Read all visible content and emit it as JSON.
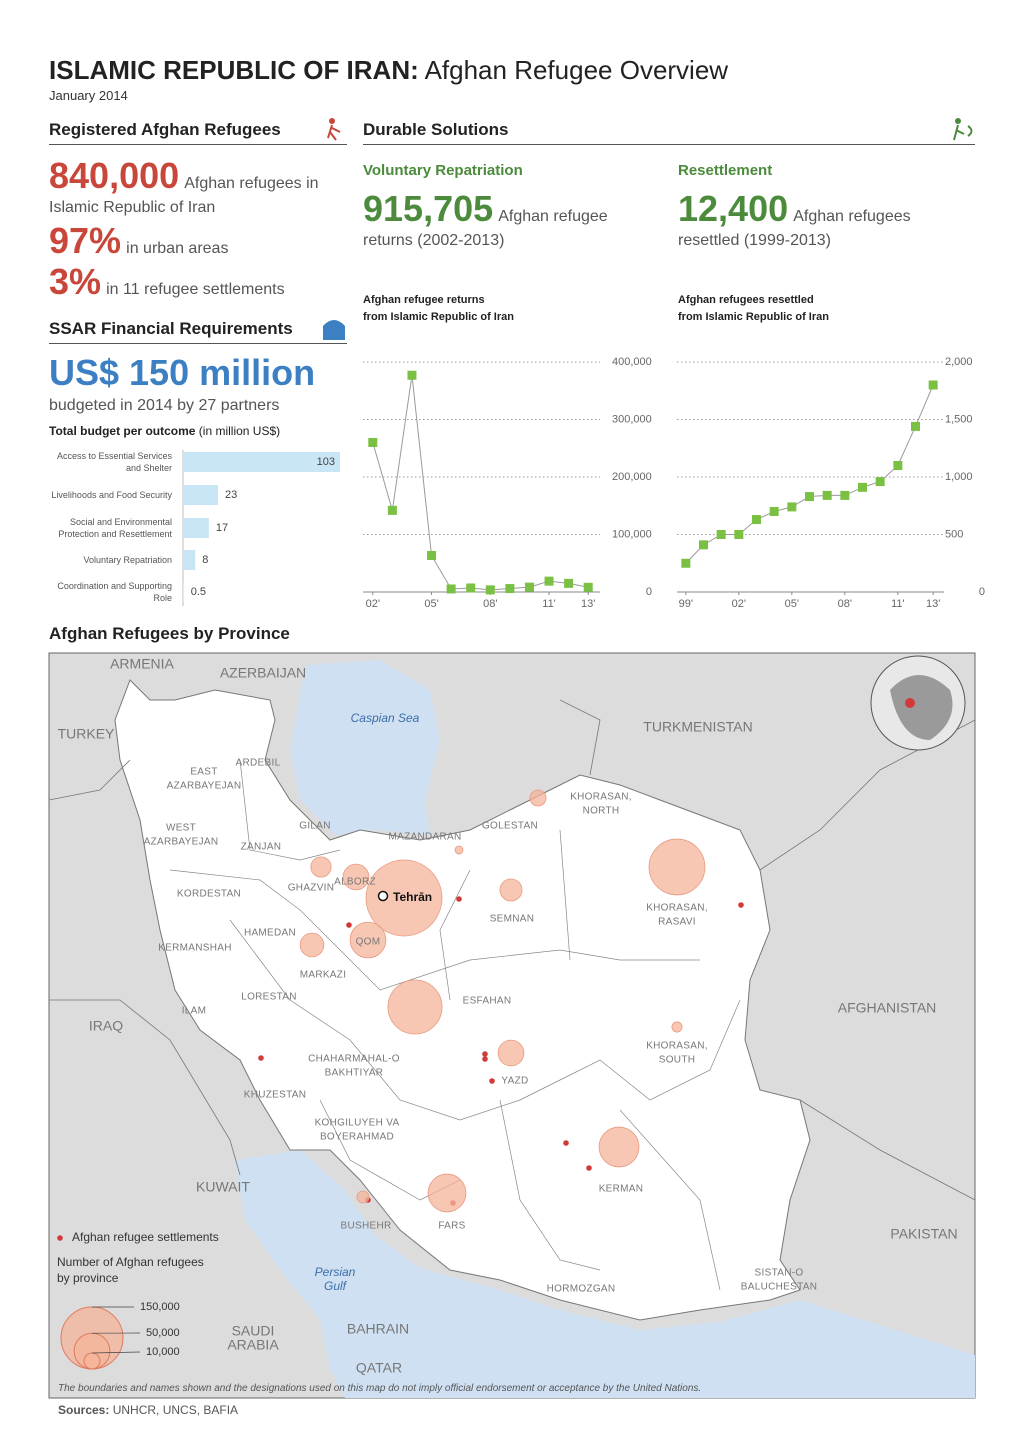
{
  "header": {
    "title_bold": "ISLAMIC REPUBLIC OF IRAN:",
    "title_rest": "Afghan Refugee Overview",
    "date": "January 2014"
  },
  "registered": {
    "heading": "Registered Afghan Refugees",
    "stats": [
      {
        "number": "840,000",
        "text": "Afghan refugees in Islamic Republic of Iran"
      },
      {
        "number": "97%",
        "text": "in urban areas"
      },
      {
        "number": "3%",
        "text": "in 11 refugee settlements"
      }
    ]
  },
  "ssar": {
    "heading": "SSAR Financial Requirements",
    "amount": "US$ 150 million",
    "text": "budgeted in 2014 by 27 partners",
    "budget_label": "Total budget per outcome",
    "budget_unit": "(in million US$)"
  },
  "durable": {
    "heading": "Durable Solutions",
    "repatriation": {
      "heading": "Voluntary Repatriation",
      "number": "915,705",
      "text": "Afghan refugee returns (2002-2013)"
    },
    "resettlement": {
      "heading": "Resettlement",
      "number": "12,400",
      "text": "Afghan refugees resettled (1999-2013)"
    }
  },
  "chart_data": [
    {
      "type": "hbar",
      "color": "#c9e6f7",
      "categories": [
        "Access to Essential Services and Shelter",
        "Livelihoods and Food Security",
        "Social and Environmental Protection and Resettlement",
        "Voluntary Repatriation",
        "Coordination and Supporting Role"
      ],
      "values": [
        103,
        23,
        17,
        8,
        0.5
      ]
    },
    {
      "type": "line",
      "title": "Afghan refugee returns",
      "subtitle": "from Islamic Republic of Iran",
      "color": "#7ac143",
      "line_color": "#9a9a9a",
      "grid": true,
      "x": [
        2002,
        2003,
        2004,
        2005,
        2006,
        2007,
        2008,
        2009,
        2010,
        2011,
        2012,
        2013
      ],
      "values": [
        260000,
        142000,
        377000,
        63500,
        5300,
        7000,
        3700,
        6000,
        8500,
        18900,
        15000,
        8200
      ],
      "xlim": [
        2001.5,
        2013.5
      ],
      "xticks": [
        {
          "value": 2002,
          "label": "02'"
        },
        {
          "value": 2005,
          "label": "05'"
        },
        {
          "value": 2008,
          "label": "08'"
        },
        {
          "value": 2011,
          "label": "11'"
        },
        {
          "value": 2013,
          "label": "13'"
        }
      ],
      "ylim": [
        0,
        400000
      ],
      "yticks": [
        0,
        {
          "value": 100000,
          "label": "100,000"
        },
        {
          "value": 200000,
          "label": "200,000"
        },
        {
          "value": 300000,
          "label": "300,000"
        },
        {
          "value": 400000,
          "label": "400,000"
        }
      ]
    },
    {
      "type": "line",
      "title": "Afghan refugees resettled",
      "subtitle": "from Islamic Republic of Iran",
      "color": "#7ac143",
      "line_color": "#9a9a9a",
      "grid": true,
      "x": [
        1999,
        2000,
        2001,
        2002,
        2003,
        2004,
        2005,
        2006,
        2007,
        2008,
        2009,
        2010,
        2011,
        2012,
        2013
      ],
      "values": [
        250,
        410,
        500,
        500,
        630,
        700,
        740,
        830,
        840,
        840,
        910,
        960,
        1100,
        1440,
        1800
      ],
      "xlim": [
        1998.5,
        2013.5
      ],
      "xticks": [
        {
          "value": 1999,
          "label": "99'"
        },
        {
          "value": 2002,
          "label": "02'"
        },
        {
          "value": 2005,
          "label": "05'"
        },
        {
          "value": 2008,
          "label": "08'"
        },
        {
          "value": 2011,
          "label": "11'"
        },
        {
          "value": 2013,
          "label": "13'"
        }
      ],
      "ylim": [
        0,
        2000
      ],
      "yticks": [
        0,
        {
          "value": 500,
          "label": "500"
        },
        {
          "value": 1000,
          "label": "1,000"
        },
        {
          "value": 1500,
          "label": "1,500"
        },
        {
          "value": 2000,
          "label": "2,000"
        }
      ]
    },
    {
      "type": "bubble",
      "title": "Afghan Refugees by Province",
      "color": "#f4b49a",
      "values": [
        225000,
        122000,
        114000,
        62000,
        56000,
        50000,
        26000,
        26000,
        22000,
        19000,
        16000,
        10000,
        5600,
        4000,
        2500
      ],
      "legend_title": "Number of Afghan refugees",
      "legend_subtitle": "by province",
      "legend_sizes": [
        {
          "value": 150000,
          "label": "150,000"
        },
        {
          "value": 50000,
          "label": "50,000"
        },
        {
          "value": 10000,
          "label": "10,000"
        }
      ],
      "settlements_label": "Afghan refugee settlements"
    }
  ],
  "map": {
    "provinces": [
      [
        "EAST",
        "AZARBAYEJAN"
      ],
      [
        "ARDEBIL"
      ],
      [
        "WEST",
        "AZARBAYEJAN"
      ],
      [
        "GILAN"
      ],
      [
        "ZANJAN"
      ],
      [
        "MAZANDARAN"
      ],
      [
        "GOLESTAN"
      ],
      [
        "KHORASAN,",
        "NORTH"
      ],
      [
        "GHAZVIN"
      ],
      [
        "ALBORZ"
      ],
      [
        "KORDESTAN"
      ],
      [
        "SEMNAN"
      ],
      [
        "KHORASAN,",
        "RASAVI"
      ],
      [
        "HAMEDAN"
      ],
      [
        "KERMANSHAH"
      ],
      [
        "QOM"
      ],
      [
        "MARKAZI"
      ],
      [
        "LORESTAN"
      ],
      [
        "ESFAHAN"
      ],
      [
        "ILAM"
      ],
      [
        "KHORASAN,",
        "SOUTH"
      ],
      [
        "CHAHARMAHAL-O",
        "BAKHTIYAR"
      ],
      [
        "YAZD"
      ],
      [
        "KHUZESTAN"
      ],
      [
        "KOHGILUYEH VA",
        "BOYERAHMAD"
      ],
      [
        "KERMAN"
      ],
      [
        "BUSHEHR"
      ],
      [
        "FARS"
      ],
      [
        "HORMOZGAN"
      ],
      [
        "SISTAN-O",
        "BALUCHESTAN"
      ]
    ],
    "countries": [
      [
        "ARMENIA"
      ],
      [
        "AZERBAIJAN"
      ],
      [
        "TURKEY"
      ],
      [
        "TURKMENISTAN"
      ],
      [
        "IRAQ"
      ],
      [
        "AFGHANISTAN"
      ],
      [
        "PAKISTAN"
      ],
      [
        "KUWAIT"
      ],
      [
        "SAUDI",
        "ARABIA"
      ],
      [
        "BAHRAIN"
      ],
      [
        "QATAR"
      ]
    ],
    "waters": [
      [
        "Caspian Sea"
      ],
      [
        "Persian",
        "Gulf"
      ]
    ],
    "capital": "Tehrān",
    "disclaimer": "The boundaries and names shown and the designations used on this map do not imply official endorsement or acceptance by the United Nations."
  },
  "sources": {
    "label": "Sources:",
    "text": "UNHCR, UNCS, BAFIA"
  }
}
